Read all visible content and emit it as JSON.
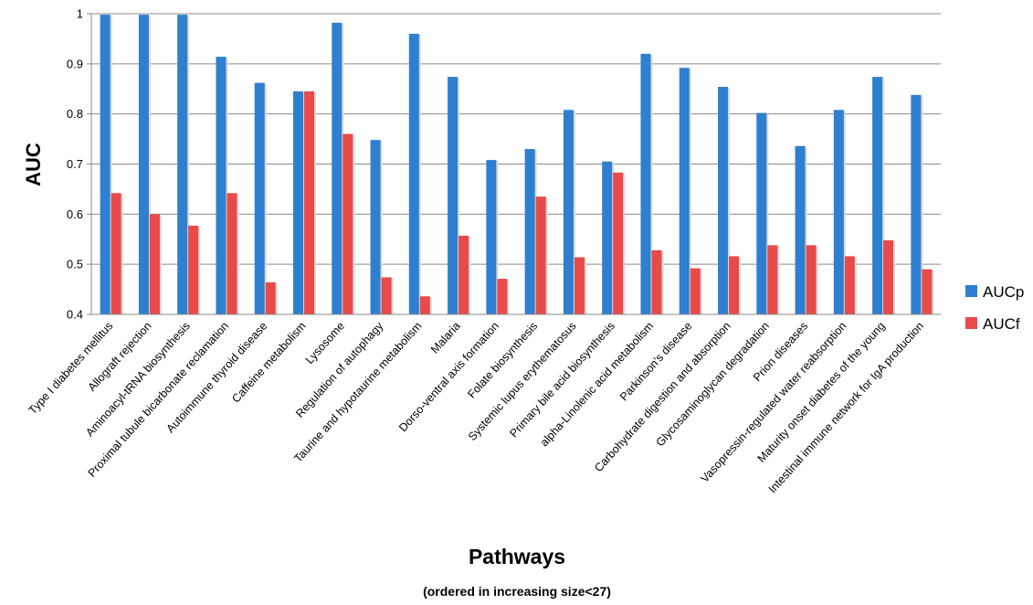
{
  "chart_data": {
    "type": "bar",
    "title": "",
    "ylabel": "AUC",
    "xlabel": "Pathways",
    "subtitle": "(ordered in increasing size<27)",
    "ylim": [
      0.4,
      1.0
    ],
    "yticks": [
      "0.4",
      "0.5",
      "0.6",
      "0.7",
      "0.8",
      "0.9",
      "1"
    ],
    "grid": true,
    "legend_position": "right",
    "categories": [
      "Type I diabetes mellitus",
      "Allograft rejection",
      "Aminoacyl-tRNA biosynthesis",
      "Proximal tubule bicarbonate reclamation",
      "Autoimmune thyroid disease",
      "Caffeine metabolism",
      "Lysosome",
      "Regulation of autophagy",
      "Taurine and hypotaurine metabolism",
      "Malaria",
      "Dorso-ventral axis formation",
      "Folate biosynthesis",
      "Systemic lupus erythematosus",
      "Primary bile acid biosynthesis",
      "alpha-Linolenic acid metabolism",
      "Parkinson's disease",
      "Carbohydrate digestion and absorption",
      "Glycosaminoglycan degradation",
      "Prion diseases",
      "Vasopressin-regulated water reabsorption",
      "Maturity onset diabetes of the young",
      "Intestinal immune network for IgA production"
    ],
    "series": [
      {
        "name": "AUCp",
        "color": "#2f7fd0",
        "values": [
          0.998,
          0.998,
          0.998,
          0.914,
          0.862,
          0.845,
          0.982,
          0.748,
          0.96,
          0.874,
          0.708,
          0.73,
          0.808,
          0.705,
          0.92,
          0.892,
          0.854,
          0.802,
          0.736,
          0.808,
          0.874,
          0.838
        ]
      },
      {
        "name": "AUCf",
        "color": "#e84a4a",
        "values": [
          0.642,
          0.6,
          0.577,
          0.642,
          0.464,
          0.845,
          0.76,
          0.474,
          0.436,
          0.557,
          0.471,
          0.635,
          0.514,
          0.683,
          0.528,
          0.492,
          0.516,
          0.538,
          0.538,
          0.516,
          0.548,
          0.49
        ]
      }
    ]
  }
}
